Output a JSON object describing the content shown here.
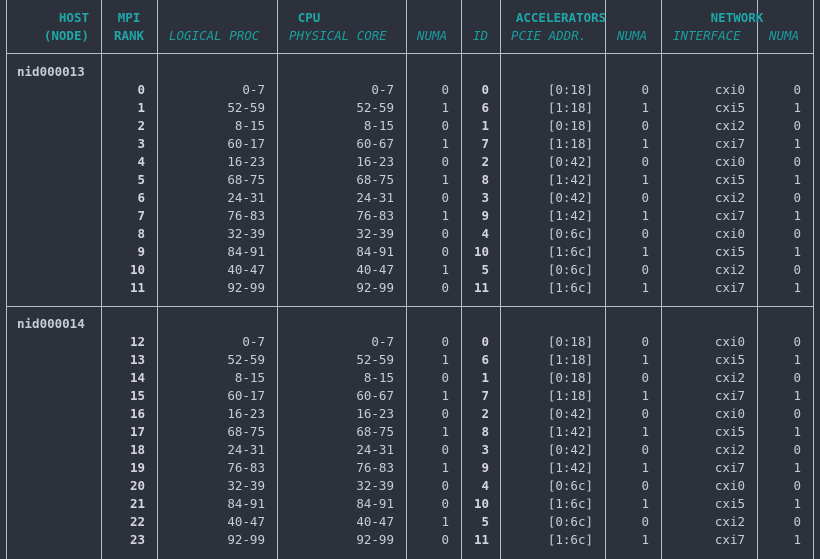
{
  "headers": {
    "host": [
      "HOST",
      "(NODE)"
    ],
    "mpi": [
      "MPI",
      "RANK"
    ],
    "cpu": "CPU",
    "accelerators": "ACCELERATORS",
    "network": "NETWORK",
    "sub": {
      "logical": "LOGICAL PROC",
      "physical": "PHYSICAL CORE",
      "cpu_numa": "NUMA",
      "id": "ID",
      "pcie": "PCIE ADDR.",
      "acc_numa": "NUMA",
      "iface": "INTERFACE",
      "net_numa": "NUMA"
    }
  },
  "nodes": [
    {
      "name": "nid000013",
      "rows": [
        [
          "0",
          "0-7",
          "0-7",
          "0",
          "0",
          "[0:18]",
          "0",
          "cxi0",
          "0"
        ],
        [
          "1",
          "52-59",
          "52-59",
          "1",
          "6",
          "[1:18]",
          "1",
          "cxi5",
          "1"
        ],
        [
          "2",
          "8-15",
          "8-15",
          "0",
          "1",
          "[0:18]",
          "0",
          "cxi2",
          "0"
        ],
        [
          "3",
          "60-17",
          "60-67",
          "1",
          "7",
          "[1:18]",
          "1",
          "cxi7",
          "1"
        ],
        [
          "4",
          "16-23",
          "16-23",
          "0",
          "2",
          "[0:42]",
          "0",
          "cxi0",
          "0"
        ],
        [
          "5",
          "68-75",
          "68-75",
          "1",
          "8",
          "[1:42]",
          "1",
          "cxi5",
          "1"
        ],
        [
          "6",
          "24-31",
          "24-31",
          "0",
          "3",
          "[0:42]",
          "0",
          "cxi2",
          "0"
        ],
        [
          "7",
          "76-83",
          "76-83",
          "1",
          "9",
          "[1:42]",
          "1",
          "cxi7",
          "1"
        ],
        [
          "8",
          "32-39",
          "32-39",
          "0",
          "4",
          "[0:6c]",
          "0",
          "cxi0",
          "0"
        ],
        [
          "9",
          "84-91",
          "84-91",
          "0",
          "10",
          "[1:6c]",
          "1",
          "cxi5",
          "1"
        ],
        [
          "10",
          "40-47",
          "40-47",
          "1",
          "5",
          "[0:6c]",
          "0",
          "cxi2",
          "0"
        ],
        [
          "11",
          "92-99",
          "92-99",
          "0",
          "11",
          "[1:6c]",
          "1",
          "cxi7",
          "1"
        ]
      ]
    },
    {
      "name": "nid000014",
      "rows": [
        [
          "12",
          "0-7",
          "0-7",
          "0",
          "0",
          "[0:18]",
          "0",
          "cxi0",
          "0"
        ],
        [
          "13",
          "52-59",
          "52-59",
          "1",
          "6",
          "[1:18]",
          "1",
          "cxi5",
          "1"
        ],
        [
          "14",
          "8-15",
          "8-15",
          "0",
          "1",
          "[0:18]",
          "0",
          "cxi2",
          "0"
        ],
        [
          "15",
          "60-17",
          "60-67",
          "1",
          "7",
          "[1:18]",
          "1",
          "cxi7",
          "1"
        ],
        [
          "16",
          "16-23",
          "16-23",
          "0",
          "2",
          "[0:42]",
          "0",
          "cxi0",
          "0"
        ],
        [
          "17",
          "68-75",
          "68-75",
          "1",
          "8",
          "[1:42]",
          "1",
          "cxi5",
          "1"
        ],
        [
          "18",
          "24-31",
          "24-31",
          "0",
          "3",
          "[0:42]",
          "0",
          "cxi2",
          "0"
        ],
        [
          "19",
          "76-83",
          "76-83",
          "1",
          "9",
          "[1:42]",
          "1",
          "cxi7",
          "1"
        ],
        [
          "20",
          "32-39",
          "32-39",
          "0",
          "4",
          "[0:6c]",
          "0",
          "cxi0",
          "0"
        ],
        [
          "21",
          "84-91",
          "84-91",
          "0",
          "10",
          "[1:6c]",
          "1",
          "cxi5",
          "1"
        ],
        [
          "22",
          "40-47",
          "40-47",
          "1",
          "5",
          "[0:6c]",
          "0",
          "cxi2",
          "0"
        ],
        [
          "23",
          "92-99",
          "92-99",
          "0",
          "11",
          "[1:6c]",
          "1",
          "cxi7",
          "1"
        ]
      ]
    }
  ],
  "colors": {
    "background": "#2c313b",
    "header": "#1fa6a8",
    "text": "#c8ccd4",
    "rules": "#b8bcc6"
  }
}
